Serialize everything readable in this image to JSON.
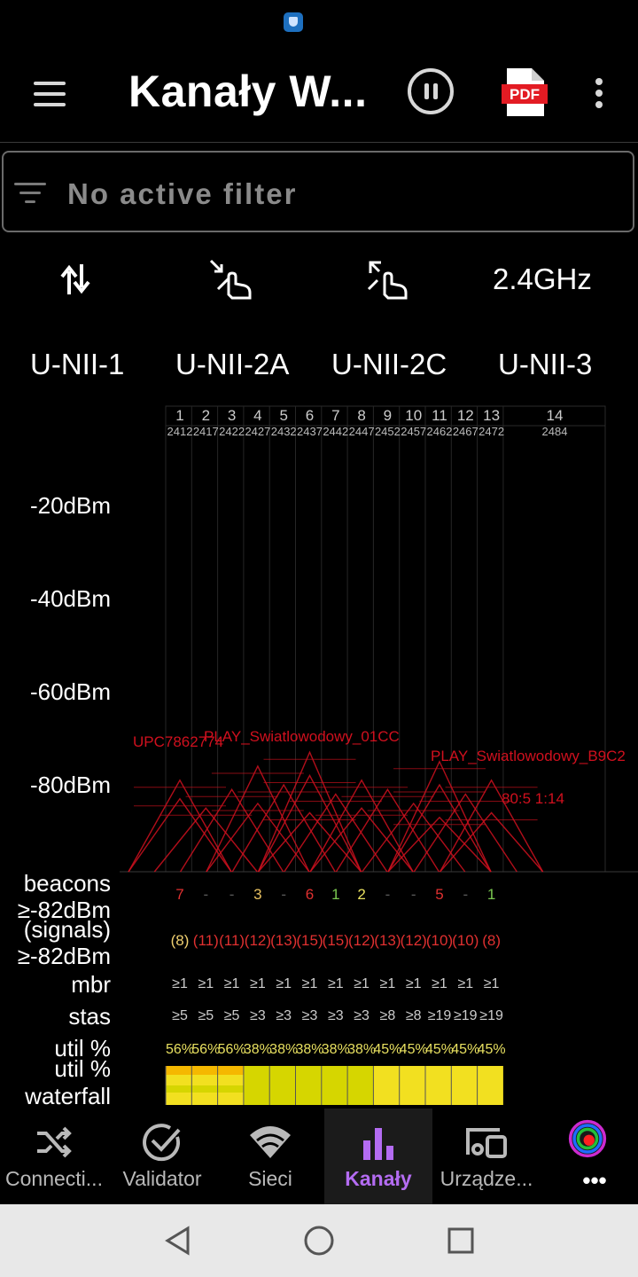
{
  "toolbar": {
    "title": "Kanały W...",
    "menu_icon": "hamburger-menu-icon",
    "pause_icon": "pause-circle-icon",
    "pdf_label": "PDF",
    "more_icon": "more-vert-icon"
  },
  "filter": {
    "placeholder": "No active filter",
    "icon": "filter-list-icon"
  },
  "controls": {
    "sort_icon": "swap-vertical-icon",
    "pinch_in_icon": "pinch-zoom-in-icon",
    "pinch_out_icon": "pinch-zoom-out-icon",
    "band": "2.4GHz"
  },
  "bands": [
    "U-NII-1",
    "U-NII-2A",
    "U-NII-2C",
    "U-NII-3"
  ],
  "colors": {
    "accent": "#b46cf2",
    "signal": "#d0101e",
    "util_yellow": "#d6d600",
    "util_orange": "#f5b800"
  },
  "chart_data": {
    "type": "spectrum",
    "y_labels": [
      "-20dBm",
      "-40dBm",
      "-60dBm",
      "-80dBm"
    ],
    "y_values": [
      -20,
      -40,
      -60,
      -80
    ],
    "channels": [
      {
        "ch": "1",
        "freq": "2412",
        "beacons": "7",
        "signals": "(8)",
        "mbr": "≥1",
        "stas": "≥5",
        "util": "56%"
      },
      {
        "ch": "2",
        "freq": "2417",
        "beacons": "-",
        "signals": "(11)",
        "mbr": "≥1",
        "stas": "≥5",
        "util": "56%"
      },
      {
        "ch": "3",
        "freq": "2422",
        "beacons": "-",
        "signals": "(11)",
        "mbr": "≥1",
        "stas": "≥5",
        "util": "56%"
      },
      {
        "ch": "4",
        "freq": "2427",
        "beacons": "3",
        "signals": "(12)",
        "mbr": "≥1",
        "stas": "≥3",
        "util": "38%"
      },
      {
        "ch": "5",
        "freq": "2432",
        "beacons": "-",
        "signals": "(13)",
        "mbr": "≥1",
        "stas": "≥3",
        "util": "38%"
      },
      {
        "ch": "6",
        "freq": "2437",
        "beacons": "6",
        "signals": "(15)",
        "mbr": "≥1",
        "stas": "≥3",
        "util": "38%"
      },
      {
        "ch": "7",
        "freq": "2442",
        "beacons": "1",
        "signals": "(15)",
        "mbr": "≥1",
        "stas": "≥3",
        "util": "38%"
      },
      {
        "ch": "8",
        "freq": "2447",
        "beacons": "2",
        "signals": "(12)",
        "mbr": "≥1",
        "stas": "≥3",
        "util": "38%"
      },
      {
        "ch": "9",
        "freq": "2452",
        "beacons": "-",
        "signals": "(13)",
        "mbr": "≥1",
        "stas": "≥8",
        "util": "45%"
      },
      {
        "ch": "10",
        "freq": "2457",
        "beacons": "-",
        "signals": "(12)",
        "mbr": "≥1",
        "stas": "≥8",
        "util": "45%"
      },
      {
        "ch": "11",
        "freq": "2462",
        "beacons": "5",
        "signals": "(10)",
        "mbr": "≥1",
        "stas": "≥19",
        "util": "45%"
      },
      {
        "ch": "12",
        "freq": "2467",
        "beacons": "-",
        "signals": "(10)",
        "mbr": "≥1",
        "stas": "≥19",
        "util": "45%"
      },
      {
        "ch": "13",
        "freq": "2472",
        "beacons": "1",
        "signals": "(8)",
        "mbr": "≥1",
        "stas": "≥19",
        "util": "45%"
      },
      {
        "ch": "14",
        "freq": "2484",
        "beacons": "",
        "signals": "",
        "mbr": "",
        "stas": "",
        "util": ""
      }
    ],
    "beacon_colors": [
      "#e03030",
      "#5a5a5a",
      "#5a5a5a",
      "#e8c060",
      "#5a5a5a",
      "#e03030",
      "#7ac850",
      "#e8e060",
      "#5a5a5a",
      "#5a5a5a",
      "#e03030",
      "#5a5a5a",
      "#7ac850"
    ],
    "signal_colors": [
      "#f0d070",
      "#e03030",
      "#e03030",
      "#e03030",
      "#e03030",
      "#e03030",
      "#e03030",
      "#e03030",
      "#e03030",
      "#e03030",
      "#e03030",
      "#e03030",
      "#e03030"
    ],
    "row_labels": [
      "beacons",
      "≥-82dBm",
      "(signals)",
      "≥-82dBm",
      "mbr",
      "stas",
      "util %",
      "util %",
      "waterfall"
    ],
    "ssids": [
      "UPC7862774",
      "PLAY_Swiatlowodowy_01CC",
      "PLAY_Swiatlowodowy_B9C2",
      "80:5 1:14"
    ],
    "networks": [
      {
        "ch": 1,
        "dbm": -79
      },
      {
        "ch": 1,
        "dbm": -83
      },
      {
        "ch": 2,
        "dbm": -85
      },
      {
        "ch": 3,
        "dbm": -81
      },
      {
        "ch": 4,
        "dbm": -76
      },
      {
        "ch": 4,
        "dbm": -84
      },
      {
        "ch": 5,
        "dbm": -80
      },
      {
        "ch": 6,
        "dbm": -73
      },
      {
        "ch": 6,
        "dbm": -78
      },
      {
        "ch": 6,
        "dbm": -86
      },
      {
        "ch": 7,
        "dbm": -82
      },
      {
        "ch": 8,
        "dbm": -79
      },
      {
        "ch": 8,
        "dbm": -85
      },
      {
        "ch": 9,
        "dbm": -81
      },
      {
        "ch": 10,
        "dbm": -84
      },
      {
        "ch": 11,
        "dbm": -75
      },
      {
        "ch": 11,
        "dbm": -80
      },
      {
        "ch": 11,
        "dbm": -87
      },
      {
        "ch": 12,
        "dbm": -82
      },
      {
        "ch": 13,
        "dbm": -79
      },
      {
        "ch": 13,
        "dbm": -86
      }
    ]
  },
  "nav": {
    "items": [
      {
        "label": "Connecti...",
        "icon": "shuffle-icon"
      },
      {
        "label": "Validator",
        "icon": "check-circle-icon"
      },
      {
        "label": "Sieci",
        "icon": "wifi-icon"
      },
      {
        "label": "Kanały",
        "icon": "bar-chart-icon"
      },
      {
        "label": "Urządze...",
        "icon": "devices-icon"
      },
      {
        "label": "•••",
        "icon": "app-logo-icon"
      }
    ]
  },
  "system_nav": {
    "back_icon": "back-triangle-icon",
    "home_icon": "home-circle-icon",
    "recents_icon": "recents-square-icon"
  }
}
